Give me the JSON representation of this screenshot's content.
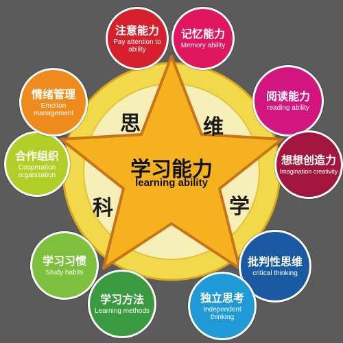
{
  "center": {
    "title_cn": "学习能力",
    "title_en": "learning ability"
  },
  "ring_chars": [
    "思",
    "维",
    "科",
    "学"
  ],
  "colors": {
    "background": "#5b5b5b",
    "ring": "#f2d94b",
    "inner_circle": "#f6f0b8",
    "star": "#f5b21e"
  },
  "bubbles": [
    {
      "id": "attention",
      "cn": "注意能力",
      "en": "Pay attention to ability",
      "color": "#d7202d"
    },
    {
      "id": "memory",
      "cn": "记忆能力",
      "en": "Memory ability",
      "color": "#e0165f"
    },
    {
      "id": "reading",
      "cn": "阅读能力",
      "en": "reading ability",
      "color": "#d2157f"
    },
    {
      "id": "imagination",
      "cn": "想想创造力",
      "en": "Imagination creativity",
      "color": "#a2153e"
    },
    {
      "id": "critical",
      "cn": "批判性思维",
      "en": "critical thinking",
      "color": "#1a5aa3"
    },
    {
      "id": "independent",
      "cn": "独立思考",
      "en": "Independent thinking",
      "color": "#1f9ad6"
    },
    {
      "id": "methods",
      "cn": "学习方法",
      "en": "Learning methods",
      "color": "#3a9a3f"
    },
    {
      "id": "habits",
      "cn": "学习习惯",
      "en": "Study habits",
      "color": "#7cc03b"
    },
    {
      "id": "cooperation",
      "cn": "合作组织",
      "en": "Cooperation organization",
      "color": "#b2cf28"
    },
    {
      "id": "emotion",
      "cn": "情绪管理",
      "en": "Emotion management",
      "color": "#ef8b1d"
    }
  ]
}
